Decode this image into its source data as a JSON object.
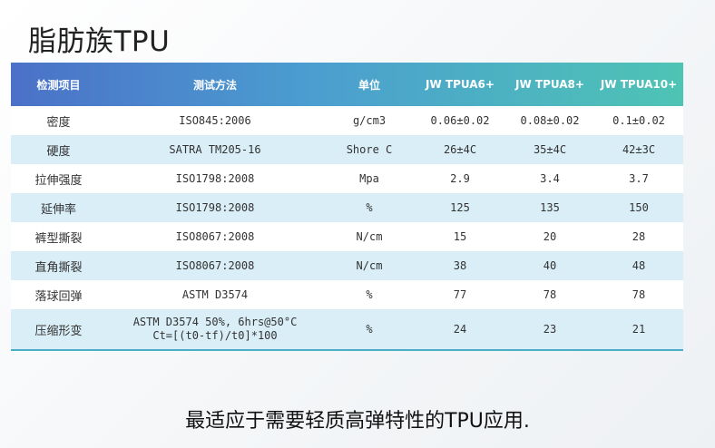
{
  "title": "脂肪族TPU",
  "table": {
    "headers": [
      "检测项目",
      "测试方法",
      "单位",
      "JW TPUA6+",
      "JW TPUA8+",
      "JW TPUA10+"
    ],
    "rows": [
      {
        "item": "密度",
        "method": "ISO845:2006",
        "unit": "g/cm3",
        "a6": "0.06±0.02",
        "a8": "0.08±0.02",
        "a10": "0.1±0.02"
      },
      {
        "item": "硬度",
        "method": "SATRA TM205-16",
        "unit": "Shore C",
        "a6": "26±4C",
        "a8": "35±4C",
        "a10": "42±3C"
      },
      {
        "item": "拉伸强度",
        "method": "ISO1798:2008",
        "unit": "Mpa",
        "a6": "2.9",
        "a8": "3.4",
        "a10": "3.7"
      },
      {
        "item": "延伸率",
        "method": "ISO1798:2008",
        "unit": "%",
        "a6": "125",
        "a8": "135",
        "a10": "150"
      },
      {
        "item": "裤型撕裂",
        "method": "ISO8067:2008",
        "unit": "N/cm",
        "a6": "15",
        "a8": "20",
        "a10": "28"
      },
      {
        "item": "直角撕裂",
        "method": "ISO8067:2008",
        "unit": "N/cm",
        "a6": "38",
        "a8": "40",
        "a10": "48"
      },
      {
        "item": "落球回弹",
        "method": "ASTM D3574",
        "unit": "%",
        "a6": "77",
        "a8": "78",
        "a10": "78"
      },
      {
        "item": "压缩形变",
        "method": "ASTM D3574 50%, 6hrs@50°C",
        "method_line2": "Ct=[(t0-tf)/t0]*100",
        "unit": "%",
        "a6": "24",
        "a8": "23",
        "a10": "21"
      }
    ]
  },
  "note": "最适应于需要轻质高弹特性的TPU应用."
}
